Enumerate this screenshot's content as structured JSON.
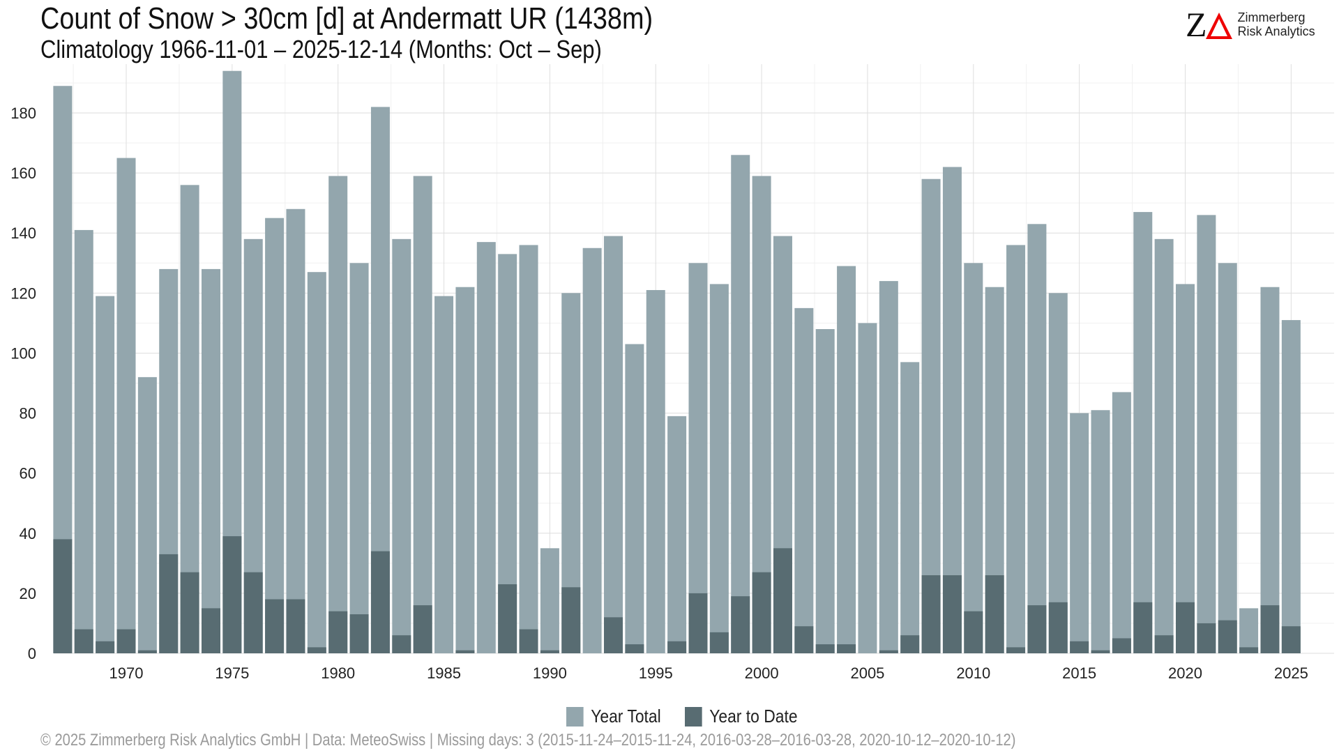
{
  "chart_data": {
    "type": "bar",
    "title": "Count of Snow > 30cm [d] at Andermatt  UR (1438m)",
    "subtitle": "Climatology 1966-11-01 – 2025-12-14 (Months: Oct – Sep)",
    "xlabel": "",
    "ylabel": "",
    "ylim": [
      0,
      195
    ],
    "yticks": [
      0,
      20,
      40,
      60,
      80,
      100,
      120,
      140,
      160,
      180
    ],
    "xticks": [
      1970,
      1975,
      1980,
      1985,
      1990,
      1995,
      2000,
      2005,
      2010,
      2015,
      2020,
      2025
    ],
    "grid": true,
    "legend_position": "bottom",
    "categories": [
      1967,
      1968,
      1969,
      1970,
      1971,
      1972,
      1973,
      1974,
      1975,
      1976,
      1977,
      1978,
      1979,
      1980,
      1981,
      1982,
      1983,
      1984,
      1985,
      1986,
      1987,
      1988,
      1989,
      1990,
      1991,
      1992,
      1993,
      1994,
      1995,
      1996,
      1997,
      1998,
      1999,
      2000,
      2001,
      2002,
      2003,
      2004,
      2005,
      2006,
      2007,
      2008,
      2009,
      2010,
      2011,
      2012,
      2013,
      2014,
      2015,
      2016,
      2017,
      2018,
      2019,
      2020,
      2021,
      2022,
      2023,
      2024,
      2025
    ],
    "series": [
      {
        "name": "Year Total",
        "color": "#93a6ad",
        "values": [
          189,
          141,
          119,
          165,
          92,
          128,
          156,
          128,
          194,
          138,
          145,
          148,
          127,
          159,
          130,
          182,
          138,
          159,
          119,
          122,
          137,
          133,
          136,
          35,
          120,
          135,
          139,
          103,
          121,
          79,
          130,
          123,
          166,
          159,
          139,
          115,
          108,
          129,
          110,
          124,
          97,
          158,
          162,
          130,
          122,
          136,
          143,
          120,
          80,
          81,
          87,
          147,
          138,
          123,
          146,
          130,
          15,
          122,
          111
        ]
      },
      {
        "name": "Year to Date",
        "color": "#586c72",
        "values": [
          38,
          8,
          4,
          8,
          1,
          33,
          27,
          15,
          39,
          27,
          18,
          18,
          2,
          14,
          13,
          34,
          6,
          16,
          0,
          1,
          0,
          23,
          8,
          1,
          22,
          0,
          12,
          3,
          0,
          4,
          20,
          7,
          19,
          27,
          35,
          9,
          3,
          3,
          0,
          1,
          6,
          26,
          26,
          14,
          26,
          2,
          16,
          17,
          4,
          1,
          5,
          17,
          6,
          17,
          10,
          11,
          2,
          16,
          9
        ]
      }
    ]
  },
  "logo": {
    "mark": "ZΔ",
    "line1": "Zimmerberg",
    "line2": "Risk Analytics"
  },
  "footer": "©  2025 Zimmerberg Risk Analytics GmbH | Data: MeteoSwiss | Missing days: 3 (2015-11-24–2015-11-24, 2016-03-28–2016-03-28, 2020-10-12–2020-10-12)"
}
